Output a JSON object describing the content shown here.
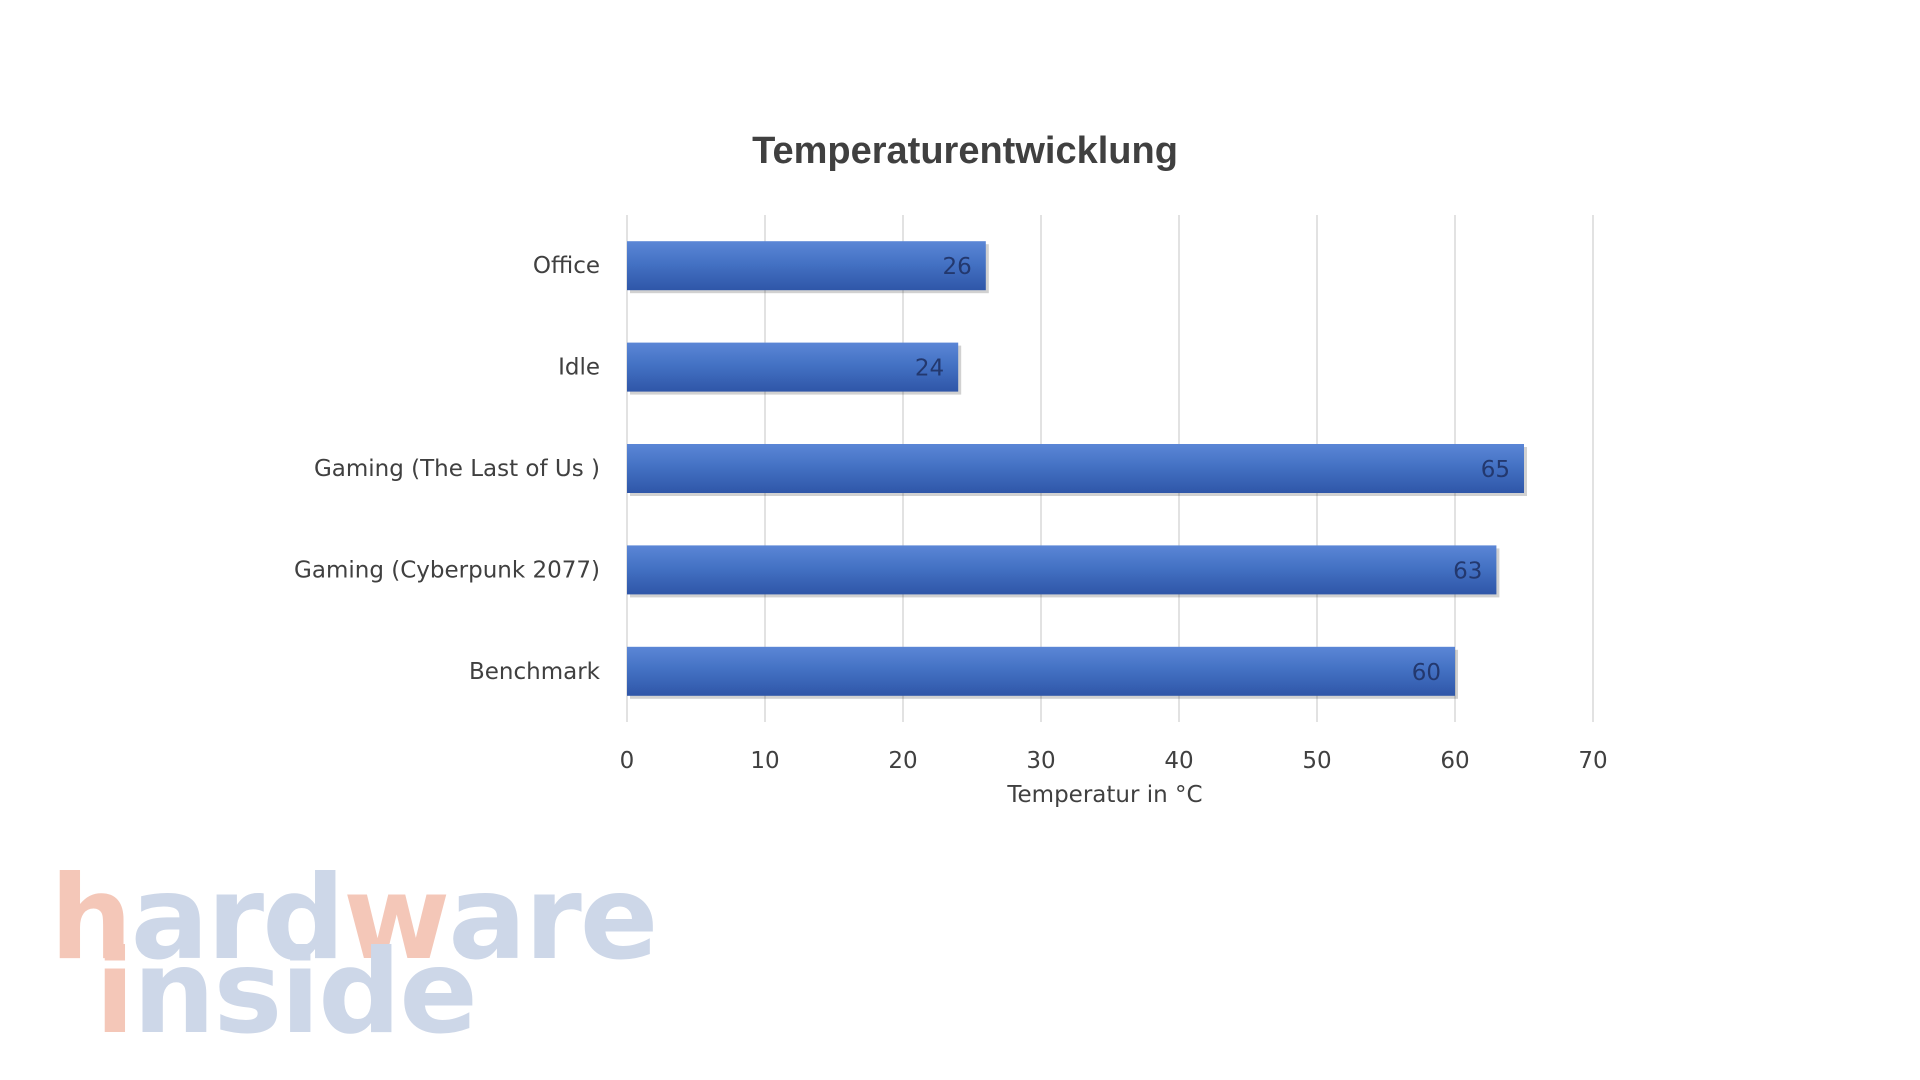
{
  "chart_data": {
    "type": "bar",
    "orientation": "horizontal",
    "title": "Temperaturentwicklung",
    "xlabel": "Temperatur in °C",
    "ylabel": "",
    "categories": [
      "Office",
      "Idle",
      "Gaming (The Last of Us )",
      "Gaming (Cyberpunk 2077)",
      "Benchmark"
    ],
    "values": [
      26,
      24,
      65,
      63,
      60
    ],
    "xlim": [
      0,
      70
    ],
    "x_ticks": [
      "0",
      "10",
      "20",
      "30",
      "40",
      "50",
      "60",
      "70"
    ],
    "grid": true,
    "data_labels": true,
    "bar_color": "#4472c4",
    "legend": "none"
  },
  "watermark": {
    "text": "hardwareinside",
    "colors": {
      "accent": "#f4c7b8",
      "base": "#cdd7e8"
    }
  }
}
